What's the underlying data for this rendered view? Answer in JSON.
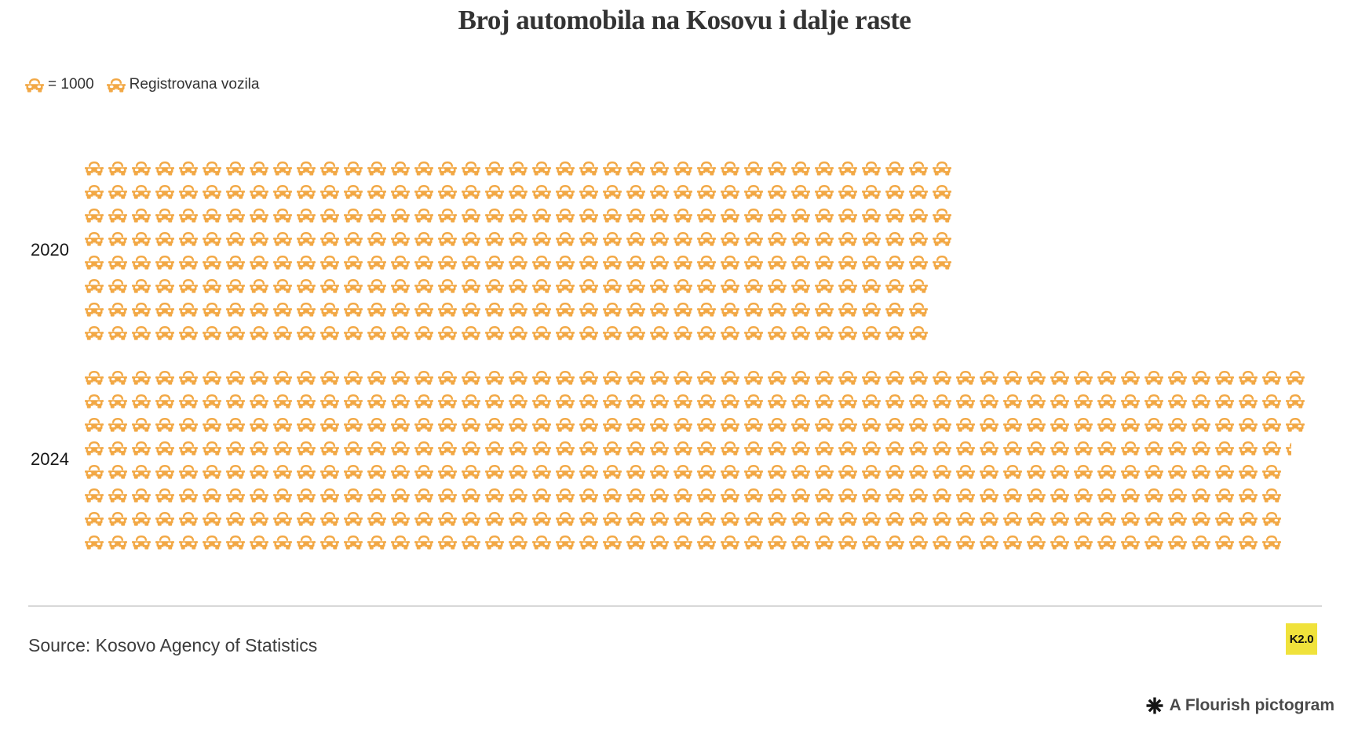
{
  "title": "Broj automobila na Kosovu i dalje raste",
  "legend": {
    "unit_label": "= 1000",
    "series_label": "Registrovana vozila"
  },
  "chart_data": {
    "type": "bar",
    "variant": "pictogram",
    "title": "Broj automobila na Kosovu i dalje raste",
    "icon": "car-front-icon",
    "icon_color": "#F2A845",
    "unit_per_icon": 1000,
    "rows_per_category": 8,
    "categories": [
      "2020",
      "2024"
    ],
    "series": [
      {
        "name": "Registrovana vozila",
        "values": [
          293000,
          411300
        ],
        "icons": [
          293,
          411.3
        ]
      }
    ],
    "legend_position": "top-left",
    "grid": false
  },
  "footer": {
    "source": "Source: Kosovo Agency of Statistics",
    "badge_label": "K2.0",
    "credit": "A Flourish pictogram"
  },
  "colors": {
    "icon": "#F2A845",
    "badge_bg": "#F0E23B",
    "badge_text": "#111111",
    "title_text": "#333333",
    "body_text": "#3D3D3D",
    "divider": "#D8D8D8",
    "credit_text": "#4A4A4A"
  }
}
